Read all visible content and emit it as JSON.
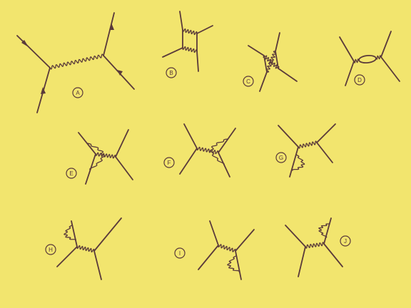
{
  "colors": {
    "background": "#f2e56e",
    "ink": "#5a3a3a"
  },
  "diagrams": [
    {
      "label": "A"
    },
    {
      "label": "B"
    },
    {
      "label": "C"
    },
    {
      "label": "D"
    },
    {
      "label": "E"
    },
    {
      "label": "F"
    },
    {
      "label": "G"
    },
    {
      "label": "H"
    },
    {
      "label": "I"
    },
    {
      "label": "J"
    }
  ]
}
